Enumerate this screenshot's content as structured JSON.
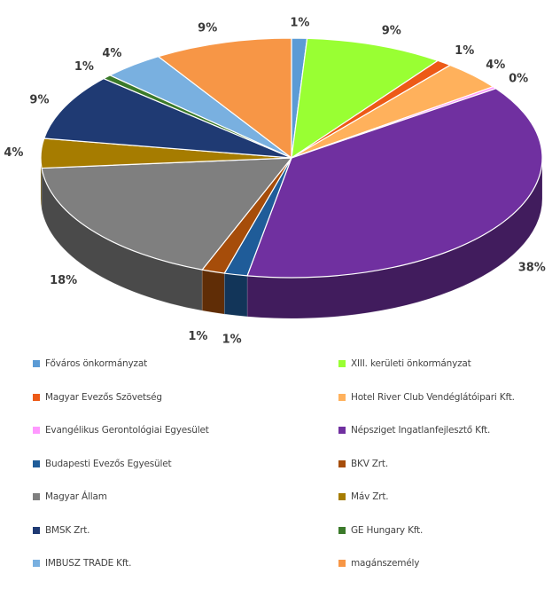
{
  "chart_data": {
    "type": "pie",
    "categories": [
      "Főváros önkormányzat",
      "XIII. kerületi önkormányzat",
      "Magyar Evezős Szövetség",
      "Hotel River Club Vendéglátóipari Kft.",
      "Evangélikus Gerontológiai Egyesület",
      "Népsziget Ingatlanfejlesztő Kft.",
      "Budapesti Evezős Egyesület",
      "BKV Zrt.",
      "Magyar Állam",
      "Máv Zrt.",
      "BMSK Zrt.",
      "GE Hungary Kft.",
      "IMBUSZ TRADE Kft.",
      "magánszemély"
    ],
    "values": [
      1,
      9,
      1,
      4,
      0.3,
      38,
      1.5,
      1.5,
      18,
      4,
      9,
      0.6,
      4,
      9
    ],
    "labels": [
      "1%",
      "9%",
      "1%",
      "4%",
      "0%",
      "38%",
      "1%",
      "1%",
      "18%",
      "4%",
      "9%",
      "1%",
      "4%",
      "9%"
    ],
    "colors": [
      "#5b9bd5",
      "#99ff33",
      "#ed5a17",
      "#ffb15c",
      "#ff99ff",
      "#7030a0",
      "#1f5c99",
      "#a64d0a",
      "#7f7f7f",
      "#a67c00",
      "#1f3a73",
      "#3b7a2a",
      "#79b0e0",
      "#f79646"
    ],
    "legend_position": "bottom",
    "three_d": true
  }
}
